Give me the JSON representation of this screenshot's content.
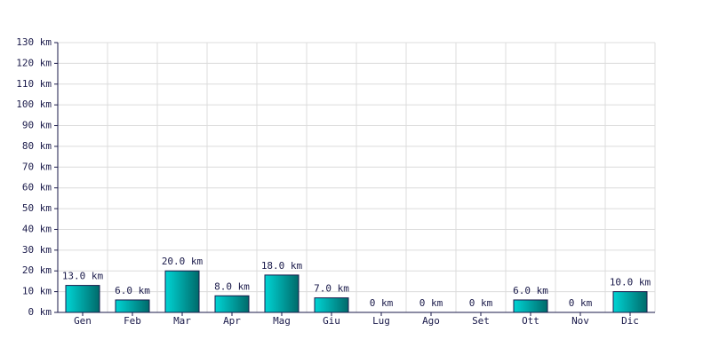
{
  "chart_data": {
    "type": "bar",
    "categories": [
      "Gen",
      "Feb",
      "Mar",
      "Apr",
      "Mag",
      "Giu",
      "Lug",
      "Ago",
      "Set",
      "Ott",
      "Nov",
      "Dic"
    ],
    "values": [
      13,
      6,
      20,
      8,
      18,
      7,
      0,
      0,
      0,
      6,
      0,
      10
    ],
    "value_labels": [
      "13.0 km",
      "6.0 km",
      "20.0 km",
      "8.0 km",
      "18.0 km",
      "7.0 km",
      "0 km",
      "0 km",
      "0 km",
      "6.0 km",
      "0 km",
      "10.0 km"
    ],
    "color": "#00d4d4",
    "ylim": [
      0,
      130
    ],
    "yticks": [
      {
        "value": 0,
        "label": "0 km"
      },
      {
        "value": 10,
        "label": "10 km"
      },
      {
        "value": 20,
        "label": "20 km"
      },
      {
        "value": 30,
        "label": "30 km"
      },
      {
        "value": 40,
        "label": "40 km"
      },
      {
        "value": 50,
        "label": "50 km"
      },
      {
        "value": 60,
        "label": "60 km"
      },
      {
        "value": 70,
        "label": "70 km"
      },
      {
        "value": 80,
        "label": "80 km"
      },
      {
        "value": 90,
        "label": "90 km"
      },
      {
        "value": 100,
        "label": "100 km"
      },
      {
        "value": 110,
        "label": "110 km"
      },
      {
        "value": 120,
        "label": "120 km"
      },
      {
        "value": 130,
        "label": "130 km"
      }
    ],
    "grid": true
  }
}
